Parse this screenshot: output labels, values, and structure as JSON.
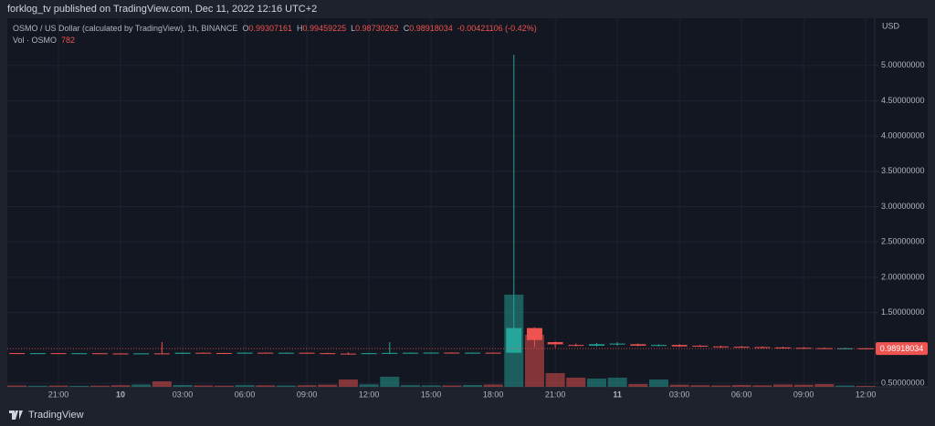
{
  "publisher": "forklog_tv published on TradingView.com, Dec 11, 2022 12:16 UTC+2",
  "footer": "TradingView",
  "chart_data": {
    "type": "candlestick",
    "title": "OSMO / US Dollar (calculated by TradingView), 1h, BINANCE",
    "ohlc_labels": [
      "O",
      "H",
      "L",
      "C"
    ],
    "change": "-0.00421106 (-0.42%)",
    "currency": "USD",
    "up_color": "#26a69a",
    "down_color": "#ef5350",
    "grid": true,
    "categories": [
      null,
      null,
      "21:00",
      null,
      null,
      "10",
      null,
      null,
      "03:00",
      null,
      null,
      "06:00",
      null,
      null,
      "09:00",
      null,
      null,
      "12:00",
      null,
      null,
      "15:00",
      null,
      null,
      "18:00",
      null,
      null,
      "21:00",
      null,
      null,
      "11",
      null,
      null,
      "03:00",
      null,
      null,
      "06:00",
      null,
      null,
      "09:00",
      null,
      null,
      "12:00"
    ],
    "open": [
      0.925,
      0.922,
      0.924,
      0.921,
      0.923,
      0.92,
      0.918,
      0.921,
      0.916,
      0.93,
      0.926,
      0.922,
      0.931,
      0.928,
      0.93,
      0.924,
      0.918,
      0.914,
      0.924,
      0.928,
      0.93,
      0.932,
      0.929,
      0.931,
      0.93,
      1.28,
      1.08,
      1.04,
      1.03,
      1.05,
      1.05,
      1.03,
      1.04,
      1.03,
      1.02,
      1.015,
      1.01,
      1.005,
      1.0,
      0.995,
      0.992,
      0.99307161
    ],
    "high": [
      0.928,
      0.926,
      0.927,
      0.925,
      0.926,
      0.924,
      0.923,
      1.08,
      0.934,
      0.936,
      0.93,
      0.935,
      0.936,
      0.934,
      0.933,
      0.93,
      0.935,
      0.928,
      1.08,
      0.934,
      0.936,
      0.937,
      0.935,
      0.936,
      5.15,
      1.29,
      1.09,
      1.06,
      1.07,
      1.08,
      1.06,
      1.05,
      1.05,
      1.04,
      1.03,
      1.025,
      1.02,
      1.015,
      1.01,
      1.005,
      1.0,
      0.99459225
    ],
    "low": [
      0.92,
      0.918,
      0.919,
      0.917,
      0.918,
      0.915,
      0.914,
      0.912,
      0.912,
      0.922,
      0.919,
      0.918,
      0.924,
      0.922,
      0.921,
      0.915,
      0.905,
      0.91,
      0.918,
      0.921,
      0.924,
      0.925,
      0.923,
      0.925,
      0.925,
      1.01,
      1.0,
      1.02,
      1.02,
      1.03,
      1.02,
      1.02,
      1.01,
      1.01,
      1.0,
      1.0,
      0.995,
      0.99,
      0.985,
      0.985,
      0.985,
      0.98730262
    ],
    "close": [
      0.922,
      0.924,
      0.921,
      0.923,
      0.92,
      0.918,
      0.921,
      0.916,
      0.93,
      0.926,
      0.922,
      0.931,
      0.928,
      0.93,
      0.924,
      0.918,
      0.914,
      0.924,
      0.928,
      0.93,
      0.932,
      0.929,
      0.931,
      0.93,
      1.28,
      1.11,
      1.05,
      1.03,
      1.05,
      1.06,
      1.03,
      1.04,
      1.02,
      1.02,
      1.01,
      1.005,
      1.0,
      0.995,
      0.99,
      0.99,
      0.993,
      0.98918034
    ],
    "volume": {
      "name": "Vol · OSMO",
      "values": [
        1200,
        900,
        1100,
        800,
        1000,
        1400,
        2000,
        4800,
        1600,
        1200,
        1000,
        1500,
        1300,
        1100,
        1400,
        1900,
        6400,
        2200,
        8800,
        1500,
        1300,
        1200,
        1600,
        2000,
        80800,
        45600,
        12000,
        8000,
        7200,
        8000,
        2400,
        6400,
        1800,
        1400,
        1200,
        1600,
        1300,
        2000,
        1800,
        2400,
        1100,
        782
      ]
    },
    "ylim": [
      0.448,
      5.668
    ],
    "yticks": [
      {
        "value": 0.5,
        "label": "0.50000000"
      },
      {
        "value": 1.5,
        "label": "1.50000000"
      },
      {
        "value": 2,
        "label": "2.00000000"
      },
      {
        "value": 2.5,
        "label": "2.50000000"
      },
      {
        "value": 3,
        "label": "3.00000000"
      },
      {
        "value": 3.5,
        "label": "3.50000000"
      },
      {
        "value": 4,
        "label": "4.00000000"
      },
      {
        "value": 4.5,
        "label": "4.50000000"
      },
      {
        "value": 5,
        "label": "5.00000000"
      }
    ]
  }
}
